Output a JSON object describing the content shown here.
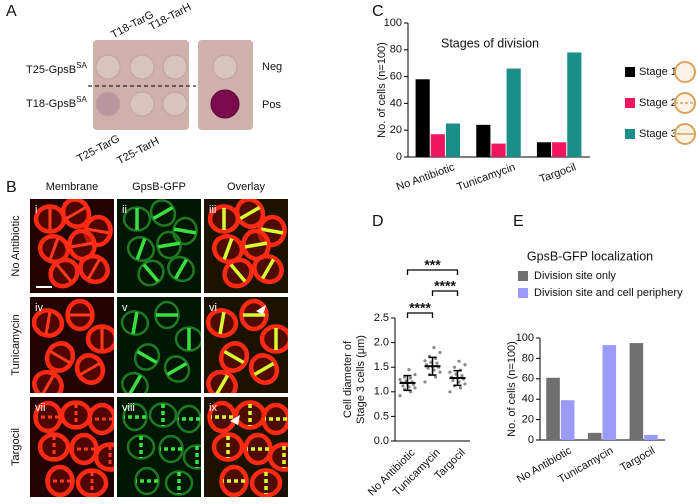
{
  "panels": {
    "a": {
      "letter": "A",
      "top_labels": [
        "T18-TarG",
        "T18-TarH"
      ],
      "bottom_labels": [
        "T25-TarG",
        "T25-TarH"
      ],
      "row_labels": [
        {
          "text": "T25-GpsB",
          "sup": "SA"
        },
        {
          "text": "T18-GpsB",
          "sup": "SA"
        }
      ],
      "controls": [
        "Neg",
        "Pos"
      ]
    },
    "b": {
      "letter": "B",
      "columns": [
        "Membrane",
        "GpsB-GFP",
        "Overlay"
      ],
      "rows": [
        "No Antibiotic",
        "Tunicamycin",
        "Targocil"
      ],
      "numerals": [
        "i",
        "ii",
        "iii",
        "iv",
        "v",
        "vi",
        "vii",
        "viii",
        "ix"
      ]
    },
    "c": {
      "letter": "C"
    },
    "d": {
      "letter": "D"
    },
    "e": {
      "letter": "E"
    }
  },
  "chart_data": [
    {
      "type": "bar",
      "title": "Stages of division",
      "ylabel": "No. of cells (n=100)",
      "categories": [
        "No Antibiotic",
        "Tunicamycin",
        "Targocil"
      ],
      "series": [
        {
          "name": "Stage 1",
          "color": "#000000",
          "values": [
            58,
            24,
            11
          ]
        },
        {
          "name": "Stage 2",
          "color": "#f0155e",
          "values": [
            17,
            10,
            11
          ]
        },
        {
          "name": "Stage 3",
          "color": "#1a8f88",
          "values": [
            25,
            66,
            78
          ]
        }
      ],
      "ylim": [
        0,
        100
      ],
      "yticks": [
        0,
        20,
        40,
        60,
        80,
        100
      ],
      "legend": "right"
    },
    {
      "type": "dotplot",
      "ylabel": [
        "Cell diameter of",
        "Stage 3 cells (μm)"
      ],
      "categories": [
        "No Antibiotic",
        "Tunicamycin",
        "Targocil"
      ],
      "points": [
        [
          0.92,
          1.0,
          1.05,
          1.08,
          1.1,
          1.12,
          1.15,
          1.17,
          1.19,
          1.2,
          1.22,
          1.25,
          1.28,
          1.3,
          1.35,
          1.45
        ],
        [
          1.2,
          1.3,
          1.35,
          1.4,
          1.44,
          1.48,
          1.5,
          1.52,
          1.55,
          1.58,
          1.6,
          1.63,
          1.68,
          1.72,
          1.8,
          1.9
        ],
        [
          1.0,
          1.08,
          1.12,
          1.16,
          1.2,
          1.23,
          1.26,
          1.28,
          1.3,
          1.33,
          1.36,
          1.4,
          1.44,
          1.5,
          1.55,
          1.62
        ]
      ],
      "means": [
        1.18,
        1.52,
        1.28
      ],
      "sd": [
        0.15,
        0.18,
        0.15
      ],
      "significance": [
        {
          "between": [
            "No Antibiotic",
            "Tunicamycin"
          ],
          "label": "****"
        },
        {
          "between": [
            "Tunicamycin",
            "Targocil"
          ],
          "label": "****"
        },
        {
          "between": [
            "No Antibiotic",
            "Targocil"
          ],
          "label": "***"
        }
      ],
      "ylim": [
        0,
        2.5
      ],
      "yticks": [
        {
          "value": 0,
          "label": "0.0"
        },
        0.5,
        {
          "value": 1,
          "label": "1.0"
        },
        1.5,
        {
          "value": 2,
          "label": "2.0"
        },
        2.5
      ]
    },
    {
      "type": "bar",
      "title": "GpsB-GFP localization",
      "ylabel": "No. of cells (n=100)",
      "categories": [
        "No Antibiotic",
        "Tunicamycin",
        "Targocil"
      ],
      "series": [
        {
          "name": "Division site only",
          "color": "#707070",
          "values": [
            61,
            7,
            95
          ]
        },
        {
          "name": "Division site and cell periphery",
          "color": "#9a9af7",
          "values": [
            39,
            93,
            5
          ]
        }
      ],
      "ylim": [
        0,
        100
      ],
      "yticks": [
        0,
        20,
        40,
        60,
        80,
        100
      ],
      "legend": "top"
    }
  ]
}
